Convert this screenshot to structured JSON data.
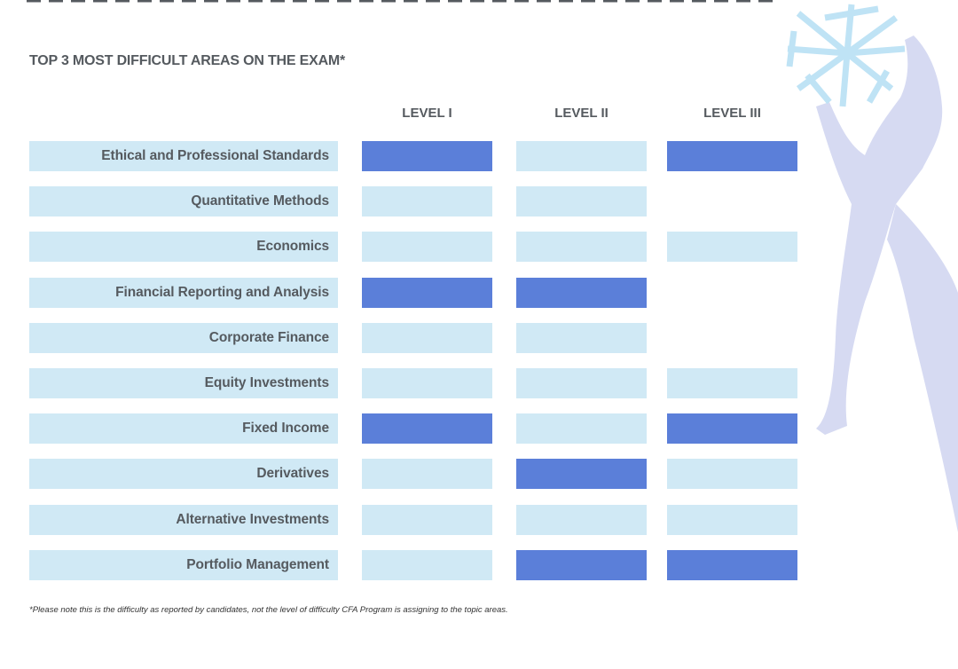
{
  "header": {
    "title": "TOP 3 MOST DIFFICULT AREAS ON THE EXAM*"
  },
  "table": {
    "columns": [
      "LEVEL I",
      "LEVEL II",
      "LEVEL III"
    ],
    "styles": {
      "top": "#5b7fd9",
      "area": "#d0e9f5",
      "none": "transparent"
    },
    "rows": [
      {
        "label": "Ethical and Professional Standards",
        "cells": [
          "top",
          "area",
          "top"
        ]
      },
      {
        "label": "Quantitative Methods",
        "cells": [
          "area",
          "area",
          "none"
        ]
      },
      {
        "label": "Economics",
        "cells": [
          "area",
          "area",
          "area"
        ]
      },
      {
        "label": "Financial Reporting and Analysis",
        "cells": [
          "top",
          "top",
          "none"
        ]
      },
      {
        "label": "Corporate Finance",
        "cells": [
          "area",
          "area",
          "none"
        ]
      },
      {
        "label": "Equity Investments",
        "cells": [
          "area",
          "area",
          "area"
        ]
      },
      {
        "label": "Fixed Income",
        "cells": [
          "top",
          "area",
          "top"
        ]
      },
      {
        "label": "Derivatives",
        "cells": [
          "area",
          "top",
          "area"
        ]
      },
      {
        "label": "Alternative Investments",
        "cells": [
          "area",
          "area",
          "area"
        ]
      },
      {
        "label": "Portfolio Management",
        "cells": [
          "area",
          "top",
          "top"
        ]
      }
    ]
  },
  "footnote": "*Please note this is the difficulty as reported by candidates, not the level of difficulty CFA Program is assigning to the topic areas."
}
